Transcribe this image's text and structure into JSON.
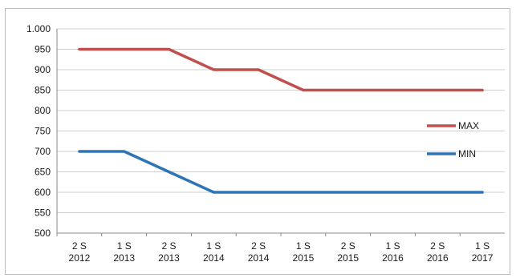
{
  "chart_data": {
    "type": "line",
    "categories": [
      "2 S 2012",
      "1 S 2013",
      "2 S 2013",
      "1 S 2014",
      "2 S 2014",
      "1 S 2015",
      "2 S 2015",
      "1 S 2016",
      "2 S 2016",
      "1 S 2017"
    ],
    "category_lines": [
      [
        "2 S",
        "2012"
      ],
      [
        "1 S",
        "2013"
      ],
      [
        "2 S",
        "2013"
      ],
      [
        "1 S",
        "2014"
      ],
      [
        "2 S",
        "2014"
      ],
      [
        "1 S",
        "2015"
      ],
      [
        "2 S",
        "2015"
      ],
      [
        "1 S",
        "2016"
      ],
      [
        "2 S",
        "2016"
      ],
      [
        "1 S",
        "2017"
      ]
    ],
    "series": [
      {
        "name": "MAX",
        "color": "#c0504d",
        "values": [
          950,
          950,
          950,
          900,
          900,
          850,
          850,
          850,
          850,
          850
        ]
      },
      {
        "name": "MIN",
        "color": "#2e75b6",
        "values": [
          700,
          700,
          650,
          600,
          600,
          600,
          600,
          600,
          600,
          600
        ]
      }
    ],
    "ylim": [
      500,
      1000
    ],
    "yticks": [
      500,
      550,
      600,
      650,
      700,
      750,
      800,
      850,
      900,
      950,
      1000
    ],
    "ytick_labels": [
      "500",
      "550",
      "600",
      "650",
      "700",
      "750",
      "800",
      "850",
      "900",
      "950",
      "1.000"
    ],
    "grid": true,
    "legend_position": "right"
  }
}
